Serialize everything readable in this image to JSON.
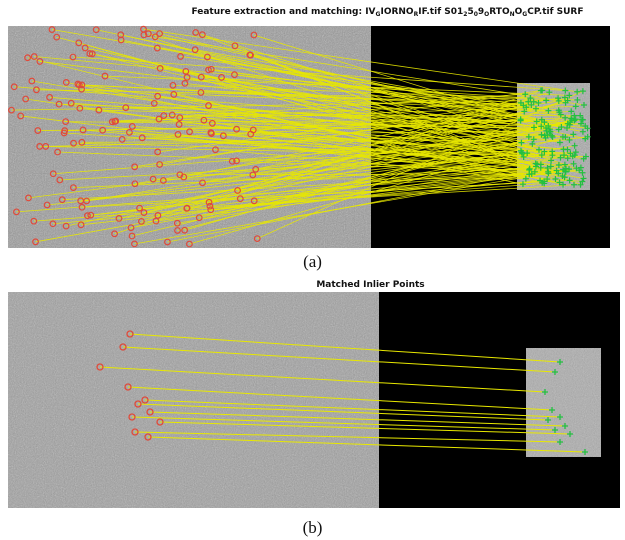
{
  "figure": {
    "panel_a": {
      "title": {
        "prefix": "Feature extraction and matching: IV",
        "sub1": "G",
        "mid1": "IORNO",
        "sub2": "R",
        "mid2": "IF.tif S01",
        "sub3": "2",
        "mid3": "5",
        "sub4": "0",
        "mid4": "9",
        "sub5": "O",
        "mid5": "RTO",
        "sub6": "N",
        "mid6": "O",
        "sub7": "G",
        "suffix": "CP.tif SURF"
      },
      "caption": "(a)"
    },
    "panel_b": {
      "title": "Matched Inlier Points",
      "caption": "(b)"
    },
    "colors": {
      "match_line": "#e8e800",
      "left_marker": "#e04a3a",
      "right_marker": "#22c040",
      "background_dark": "#000000",
      "image_gray": "#9a9a9a"
    }
  }
}
